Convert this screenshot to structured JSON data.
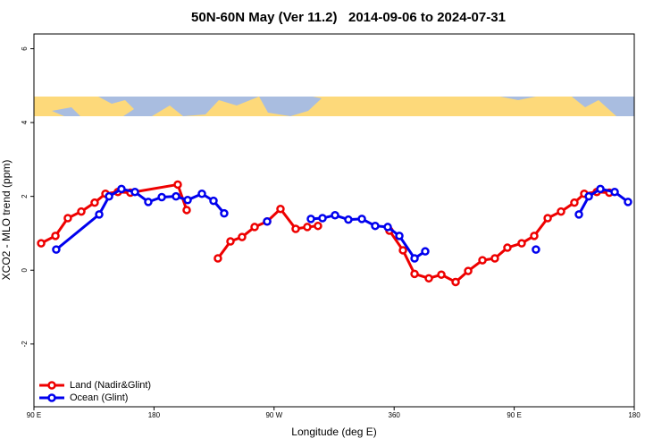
{
  "chart_data": {
    "type": "line",
    "title": "50N-60N May (Ver 11.2)   2014-09-06 to 2024-07-31",
    "x_label": "Longitude (deg E)",
    "y_label": "XCO2 - MLO trend (ppm)",
    "xlim": [
      90,
      540
    ],
    "ylim": [
      -3.7,
      6.4
    ],
    "xticks": [
      {
        "value": 90,
        "label": "90 E"
      },
      180,
      {
        "value": 270,
        "label": "90 W"
      },
      360,
      {
        "value": 450,
        "label": "90 E"
      },
      {
        "value": 540,
        "label": "180"
      }
    ],
    "yticks": [
      -2,
      0,
      2,
      4,
      6
    ],
    "legend": "bottom-left",
    "series": [
      {
        "name": "Land (Nadir&Glint)",
        "color": "#ee0000",
        "x": [
          95.4,
          106.1,
          115.4,
          125.5,
          135.5,
          143.6,
          152.9,
          162.3,
          197.8,
          204.5,
          null,
          227.9,
          237.3,
          246.0,
          255.4,
          264.8,
          274.8,
          286.2,
          294.9,
          302.9,
          null,
          356.5,
          366.6,
          375.3,
          386.0,
          395.4,
          406.1,
          415.5,
          426.2,
          435.5,
          444.9,
          455.6,
          465.0,
          475.1,
          485.1,
          495.1,
          502.5,
          511.9,
          521.3
        ],
        "values": [
          0.73,
          0.93,
          1.41,
          1.59,
          1.83,
          2.07,
          2.12,
          2.1,
          2.32,
          1.63,
          null,
          0.32,
          0.78,
          0.9,
          1.17,
          1.32,
          1.66,
          1.12,
          1.17,
          1.2,
          null,
          1.07,
          0.54,
          -0.1,
          -0.22,
          -0.12,
          -0.32,
          -0.02,
          0.27,
          0.32,
          0.61,
          0.73,
          0.93,
          1.41,
          1.59,
          1.83,
          2.07,
          2.12,
          2.1
        ]
      },
      {
        "name": "Ocean (Glint)",
        "color": "#0000ee",
        "x": [
          106.7,
          138.9,
          146.3,
          155.6,
          165.7,
          175.7,
          185.8,
          196.5,
          205.2,
          215.9,
          224.6,
          232.6,
          null,
          264.8,
          null,
          297.6,
          306.3,
          315.7,
          325.7,
          335.8,
          345.8,
          355.2,
          363.9,
          375.3,
          383.3,
          null,
          466.3,
          null,
          498.5,
          505.9,
          514.6,
          525.3,
          535.3
        ],
        "values": [
          0.56,
          1.51,
          2.0,
          2.2,
          2.12,
          1.85,
          1.98,
          2.0,
          1.9,
          2.07,
          1.88,
          1.54,
          null,
          1.32,
          null,
          1.39,
          1.41,
          1.49,
          1.37,
          1.39,
          1.2,
          1.17,
          0.93,
          0.32,
          0.51,
          null,
          0.56,
          null,
          1.51,
          2.0,
          2.2,
          2.12,
          1.85
        ]
      }
    ]
  }
}
